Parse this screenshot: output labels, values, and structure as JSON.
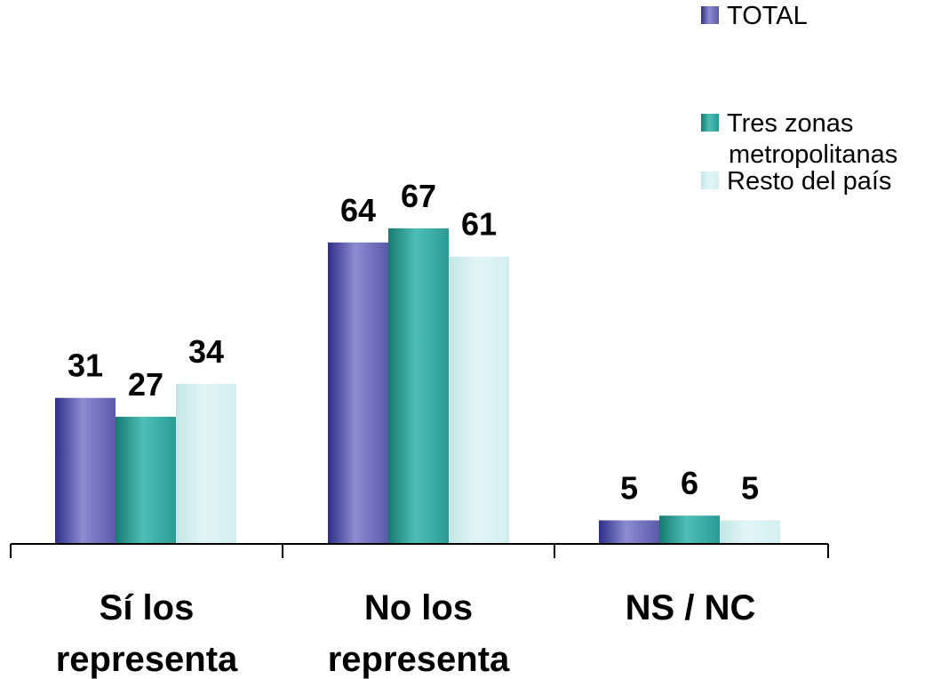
{
  "chart_data": {
    "type": "bar",
    "categories": [
      [
        "Sí los",
        "representa"
      ],
      [
        "No los",
        "representa"
      ],
      [
        "NS / NC"
      ]
    ],
    "series": [
      {
        "name": "TOTAL",
        "legend_lines": [
          "TOTAL"
        ],
        "values": [
          31,
          64,
          5
        ],
        "color": "#5a5aaa",
        "gradient": [
          "#2e2e8a",
          "#8c8cd2",
          "#5a5aaa"
        ]
      },
      {
        "name": "Tres zonas metropolitanas",
        "legend_lines": [
          "Tres zonas",
          "metropolitanas"
        ],
        "values": [
          27,
          67,
          6
        ],
        "color": "#2a9c94",
        "gradient": [
          "#177a72",
          "#4dbfb6",
          "#2a9c94"
        ]
      },
      {
        "name": "Resto del país",
        "legend_lines": [
          "Resto del país"
        ],
        "values": [
          34,
          61,
          5
        ],
        "color": "#d4eef0",
        "gradient": [
          "#c4e6e8",
          "#e2f5f6",
          "#d4eef0"
        ]
      }
    ],
    "data_labels": true,
    "ylim": [
      0,
      100
    ],
    "grid": false,
    "legend": "top-right",
    "title": "",
    "xlabel": "",
    "ylabel": ""
  }
}
